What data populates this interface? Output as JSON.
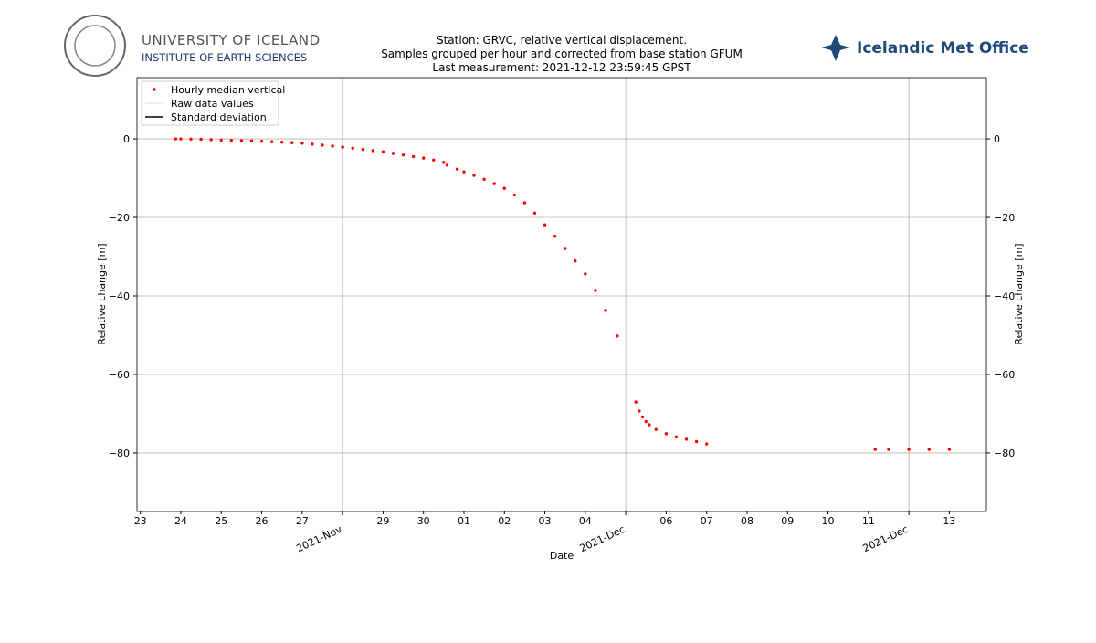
{
  "header": {
    "university": "UNIVERSITY OF ICELAND",
    "institute": "INSTITUTE OF EARTH SCIENCES",
    "met_office": "Icelandic Met Office"
  },
  "chart_data": {
    "type": "scatter",
    "title": [
      "Station: GRVC, relative vertical displacement.",
      "Samples grouped per hour and corrected from base station GFUM",
      "Last measurement: 2021-12-12 23:59:45 GPST"
    ],
    "xlabel": "Date",
    "ylabel": "Relative change [m]",
    "xlim": [
      "2021-11-22T22:00",
      "2021-12-13T22:00"
    ],
    "ylim": [
      -94.9,
      15.6
    ],
    "yticks": [
      {
        "value": 0,
        "label": "0"
      },
      {
        "value": -20,
        "label": "−20"
      },
      {
        "value": -40,
        "label": "−40"
      },
      {
        "value": -60,
        "label": "−60"
      },
      {
        "value": -80,
        "label": "−80"
      }
    ],
    "xticks": [
      {
        "value": "2021-11-23",
        "label": "23"
      },
      {
        "value": "2021-11-24",
        "label": "24"
      },
      {
        "value": "2021-11-25",
        "label": "25"
      },
      {
        "value": "2021-11-26",
        "label": "26"
      },
      {
        "value": "2021-11-27",
        "label": "27"
      },
      {
        "value": "2021-11-29",
        "label": "29"
      },
      {
        "value": "2021-11-30",
        "label": "30"
      },
      {
        "value": "2021-12-01",
        "label": "01"
      },
      {
        "value": "2021-12-02",
        "label": "02"
      },
      {
        "value": "2021-12-03",
        "label": "03"
      },
      {
        "value": "2021-12-04",
        "label": "04"
      },
      {
        "value": "2021-12-06",
        "label": "06"
      },
      {
        "value": "2021-12-07",
        "label": "07"
      },
      {
        "value": "2021-12-08",
        "label": "08"
      },
      {
        "value": "2021-12-09",
        "label": "09"
      },
      {
        "value": "2021-12-10",
        "label": "10"
      },
      {
        "value": "2021-12-11",
        "label": "11"
      },
      {
        "value": "2021-12-13",
        "label": "13"
      }
    ],
    "xticks_major": [
      {
        "value": "2021-11-28",
        "label": "2021-Nov"
      },
      {
        "value": "2021-12-05",
        "label": "2021-Dec"
      },
      {
        "value": "2021-12-12",
        "label": "2021-Dec"
      }
    ],
    "grid": true,
    "legend": "upper left",
    "series": [
      {
        "name": "Hourly median vertical",
        "color": "#ff0000",
        "x": [
          "2021-11-23T21:00",
          "2021-11-24T00:00",
          "2021-11-24T06:00",
          "2021-11-24T12:00",
          "2021-11-24T18:00",
          "2021-11-25T00:00",
          "2021-11-25T06:00",
          "2021-11-25T12:00",
          "2021-11-25T18:00",
          "2021-11-26T00:00",
          "2021-11-26T06:00",
          "2021-11-26T12:00",
          "2021-11-26T18:00",
          "2021-11-27T00:00",
          "2021-11-27T06:00",
          "2021-11-27T12:00",
          "2021-11-27T18:00",
          "2021-11-28T00:00",
          "2021-11-28T06:00",
          "2021-11-28T12:00",
          "2021-11-28T18:00",
          "2021-11-29T00:00",
          "2021-11-29T06:00",
          "2021-11-29T12:00",
          "2021-11-29T18:00",
          "2021-11-30T00:00",
          "2021-11-30T06:00",
          "2021-11-30T12:00",
          "2021-11-30T14:00",
          "2021-11-30T20:00",
          "2021-12-01T00:00",
          "2021-12-01T06:00",
          "2021-12-01T12:00",
          "2021-12-01T18:00",
          "2021-12-02T00:00",
          "2021-12-02T06:00",
          "2021-12-02T12:00",
          "2021-12-02T18:00",
          "2021-12-03T00:00",
          "2021-12-03T06:00",
          "2021-12-03T12:00",
          "2021-12-03T18:00",
          "2021-12-04T00:00",
          "2021-12-04T06:00",
          "2021-12-04T12:00",
          "2021-12-04T19:00",
          "2021-12-05T06:00",
          "2021-12-05T08:00",
          "2021-12-05T10:00",
          "2021-12-05T12:00",
          "2021-12-05T14:00",
          "2021-12-05T18:00",
          "2021-12-06T00:00",
          "2021-12-06T06:00",
          "2021-12-06T12:00",
          "2021-12-06T18:00",
          "2021-12-07T00:00",
          "2021-12-11T04:00",
          "2021-12-11T12:00",
          "2021-12-12T00:00",
          "2021-12-12T12:00",
          "2021-12-13T00:00"
        ],
        "values": [
          0,
          0,
          -0.05,
          -0.1,
          -0.2,
          -0.3,
          -0.37,
          -0.45,
          -0.52,
          -0.6,
          -0.72,
          -0.85,
          -0.97,
          -1.1,
          -1.35,
          -1.6,
          -1.85,
          -2.1,
          -2.4,
          -2.7,
          -3.0,
          -3.3,
          -3.7,
          -4.1,
          -4.5,
          -4.9,
          -5.4,
          -6.0,
          -6.7,
          -7.7,
          -8.4,
          -9.3,
          -10.3,
          -11.4,
          -12.6,
          -14.3,
          -16.3,
          -18.9,
          -21.9,
          -24.8,
          -27.9,
          -31.1,
          -34.4,
          -38.6,
          -43.7,
          -50.2,
          -67,
          -69.3,
          -70.8,
          -72.0,
          -72.8,
          -74.0,
          -75.1,
          -75.9,
          -76.5,
          -77.1,
          -77.7,
          -79.1,
          -79.1,
          -79.1,
          -79.1,
          -79.1
        ]
      },
      {
        "name": "Raw data values",
        "color": "#dddddd"
      },
      {
        "name": "Standard deviation",
        "color": "#000000"
      }
    ]
  }
}
